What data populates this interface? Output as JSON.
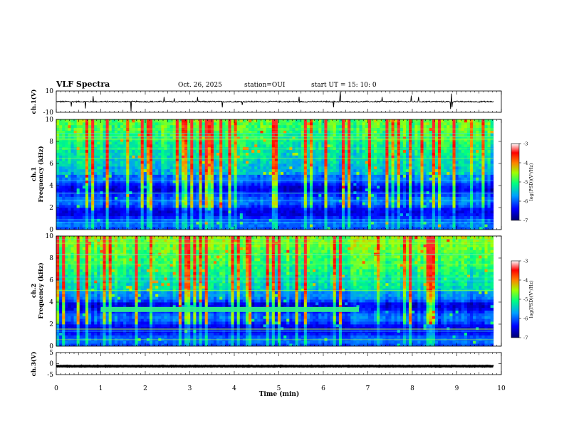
{
  "header": {
    "title": "VLF Spectra",
    "date": "Oct. 26, 2025",
    "station": "station=OUI",
    "start": "start  UT =   15: 10: 0"
  },
  "chart_data": [
    {
      "type": "line",
      "panel": "ch1-waveform",
      "ylabel": "ch.1(V)",
      "ylim": [
        -10,
        10
      ],
      "yticks": [
        "10",
        "-10"
      ],
      "baseline": 0,
      "xlim": [
        0,
        10
      ],
      "data_end_min": 9.82
    },
    {
      "type": "heatmap",
      "panel": "ch1-spectrogram",
      "ylabel": "ch.1\nFrequency (kHz)",
      "ylim": [
        0,
        10
      ],
      "yticks": [
        "0",
        "2",
        "4",
        "6",
        "8",
        "10"
      ],
      "xlim": [
        0,
        10
      ],
      "data_end_min": 9.82,
      "colorbar": {
        "label": "log(PSD)(V²/Hz)",
        "range": [
          -7,
          -3
        ],
        "ticks": [
          "-3",
          "-4",
          "-5",
          "-6",
          "-7"
        ]
      },
      "bright_band": null
    },
    {
      "type": "heatmap",
      "panel": "ch2-spectrogram",
      "ylabel": "ch.2\nFrequency (kHz)",
      "ylim": [
        0,
        10
      ],
      "yticks": [
        "0",
        "2",
        "4",
        "6",
        "8",
        "10"
      ],
      "xlim": [
        0,
        10
      ],
      "data_end_min": 9.82,
      "colorbar": {
        "label": "log(PSD)(V²/Hz)",
        "range": [
          -7,
          -3
        ],
        "ticks": [
          "-3",
          "-4",
          "-5",
          "-6",
          "-7"
        ]
      },
      "bright_band": {
        "t_start_min": 1.0,
        "t_end_min": 6.8,
        "freq_khz": 3.3
      }
    },
    {
      "type": "line",
      "panel": "ch3-waveform",
      "ylabel": "ch.3(V)",
      "ylim": [
        -5,
        5
      ],
      "yticks": [
        "5",
        "0",
        "-5"
      ],
      "baseline": -1.2,
      "xlim": [
        0,
        10
      ],
      "data_end_min": 9.82
    }
  ],
  "xaxis": {
    "label": "Time  (min)",
    "ticks": [
      "0",
      "1",
      "2",
      "3",
      "4",
      "5",
      "6",
      "7",
      "8",
      "9",
      "10"
    ]
  },
  "colors": {
    "stops": [
      "#000080",
      "#0000ff",
      "#0088ff",
      "#00ff88",
      "#ffff00",
      "#ff0000",
      "#ffffff"
    ]
  }
}
